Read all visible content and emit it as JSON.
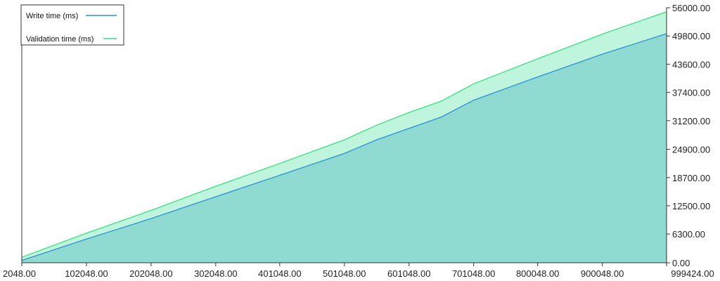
{
  "chart_data": {
    "type": "area",
    "title": "",
    "xlabel": "",
    "ylabel": "",
    "xlim": [
      2048,
      999424
    ],
    "ylim": [
      0,
      56000
    ],
    "x_ticks": [
      2048,
      102048,
      202048,
      302048,
      401048,
      501048,
      601048,
      701048,
      800048,
      900048,
      999424
    ],
    "x_tick_labels": [
      "2048.00",
      "102048.00",
      "202048.00",
      "302048.00",
      "401048.00",
      "501048.00",
      "601048.00",
      "701048.00",
      "800048.00",
      "900048.00",
      "999424.00"
    ],
    "y_ticks": [
      0,
      6300,
      12500,
      18700,
      24900,
      31200,
      37400,
      43600,
      49800,
      56000
    ],
    "y_tick_labels": [
      "0.00",
      "6300.00",
      "12500.00",
      "18700.00",
      "24900.00",
      "31200.00",
      "37400.00",
      "43600.00",
      "49800.00",
      "56000.00"
    ],
    "y_axis_side": "right",
    "grid": false,
    "stacked": true,
    "legend_position": "top-left",
    "x": [
      2048,
      102048,
      202048,
      302048,
      401048,
      501048,
      551048,
      601048,
      651048,
      701048,
      800048,
      900048,
      999424
    ],
    "series": [
      {
        "name": "Write time (ms)",
        "color": "#2d8fd5",
        "fill": "#8fdbd2",
        "values": [
          500,
          5200,
          9700,
          14500,
          19200,
          24000,
          27000,
          29500,
          32000,
          35700,
          40800,
          45800,
          50300
        ]
      },
      {
        "name": "Validation time (ms)",
        "color": "#3ddc84",
        "fill": "#bff5dc",
        "values": [
          700,
          1300,
          1800,
          2300,
          2600,
          3000,
          3200,
          3500,
          3500,
          3600,
          4000,
          4400,
          4800
        ]
      }
    ]
  }
}
